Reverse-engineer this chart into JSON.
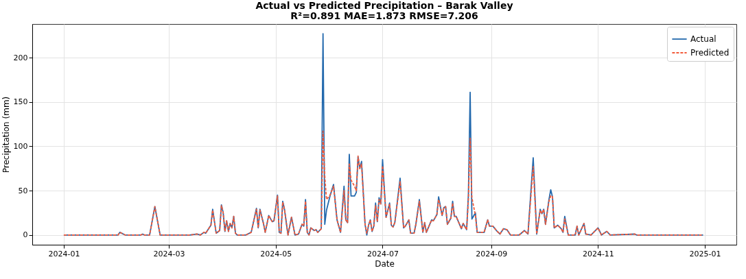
{
  "chart_data": {
    "type": "line",
    "title": "Actual vs Predicted Precipitation – Barak Valley",
    "subtitle": "R²=0.891  MAE=1.873  RMSE=7.206",
    "xlabel": "Date",
    "ylabel": "Precipitation (mm)",
    "x": [
      "2024-01-01",
      "2024-02-01",
      "2024-02-02",
      "2024-02-05",
      "2024-02-14",
      "2024-02-15",
      "2024-02-16",
      "2024-02-19",
      "2024-02-22",
      "2024-02-25",
      "2024-03-13",
      "2024-03-17",
      "2024-03-19",
      "2024-03-21",
      "2024-03-22",
      "2024-03-25",
      "2024-03-26",
      "2024-03-28",
      "2024-03-30",
      "2024-03-31",
      "2024-04-01",
      "2024-04-02",
      "2024-04-03",
      "2024-04-04",
      "2024-04-05",
      "2024-04-06",
      "2024-04-07",
      "2024-04-08",
      "2024-04-09",
      "2024-04-14",
      "2024-04-17",
      "2024-04-20",
      "2024-04-21",
      "2024-04-22",
      "2024-04-24",
      "2024-04-25",
      "2024-04-27",
      "2024-04-29",
      "2024-04-30",
      "2024-05-02",
      "2024-05-03",
      "2024-05-04",
      "2024-05-05",
      "2024-05-06",
      "2024-05-08",
      "2024-05-10",
      "2024-05-12",
      "2024-05-14",
      "2024-05-16",
      "2024-05-17",
      "2024-05-18",
      "2024-05-19",
      "2024-05-20",
      "2024-05-21",
      "2024-05-23",
      "2024-05-24",
      "2024-05-25",
      "2024-05-27",
      "2024-05-28",
      "2024-05-29",
      "2024-05-30",
      "2024-06-01",
      "2024-06-03",
      "2024-06-05",
      "2024-06-07",
      "2024-06-09",
      "2024-06-10",
      "2024-06-11",
      "2024-06-12",
      "2024-06-13",
      "2024-06-15",
      "2024-06-16",
      "2024-06-17",
      "2024-06-18",
      "2024-06-19",
      "2024-06-21",
      "2024-06-22",
      "2024-06-23",
      "2024-06-24",
      "2024-06-25",
      "2024-06-26",
      "2024-06-27",
      "2024-06-28",
      "2024-06-29",
      "2024-06-30",
      "2024-07-01",
      "2024-07-03",
      "2024-07-05",
      "2024-07-06",
      "2024-07-07",
      "2024-07-08",
      "2024-07-11",
      "2024-07-13",
      "2024-07-14",
      "2024-07-16",
      "2024-07-17",
      "2024-07-19",
      "2024-07-20",
      "2024-07-22",
      "2024-07-24",
      "2024-07-25",
      "2024-07-26",
      "2024-07-29",
      "2024-07-30",
      "2024-08-01",
      "2024-08-02",
      "2024-08-04",
      "2024-08-05",
      "2024-08-06",
      "2024-08-07",
      "2024-08-09",
      "2024-08-10",
      "2024-08-11",
      "2024-08-12",
      "2024-08-15",
      "2024-08-16",
      "2024-08-18",
      "2024-08-19",
      "2024-08-20",
      "2024-08-21",
      "2024-08-23",
      "2024-08-24",
      "2024-08-28",
      "2024-08-30",
      "2024-08-31",
      "2024-09-02",
      "2024-09-04",
      "2024-09-06",
      "2024-09-08",
      "2024-09-10",
      "2024-09-12",
      "2024-09-17",
      "2024-09-20",
      "2024-09-22",
      "2024-09-25",
      "2024-09-27",
      "2024-09-29",
      "2024-09-30",
      "2024-10-01",
      "2024-10-02",
      "2024-10-04",
      "2024-10-05",
      "2024-10-06",
      "2024-10-07",
      "2024-10-09",
      "2024-10-11",
      "2024-10-12",
      "2024-10-13",
      "2024-10-15",
      "2024-10-19",
      "2024-10-20",
      "2024-10-21",
      "2024-10-24",
      "2024-10-25",
      "2024-10-28",
      "2024-11-01",
      "2024-11-03",
      "2024-11-06",
      "2024-11-08",
      "2024-11-22",
      "2024-11-23",
      "2024-12-31"
    ],
    "series": [
      {
        "name": "Actual",
        "color": "#2369ad",
        "line_style": "solid",
        "values": [
          0,
          0,
          3,
          0,
          0,
          1,
          0,
          0,
          32,
          0,
          0,
          1,
          0,
          3,
          2,
          11,
          29,
          2,
          5,
          34,
          25,
          4,
          16,
          4,
          13,
          8,
          21,
          2,
          0,
          0,
          3,
          30,
          8,
          29,
          13,
          3,
          22,
          15,
          16,
          45,
          3,
          2,
          38,
          29,
          0,
          20,
          0,
          1,
          12,
          10,
          40,
          3,
          0,
          8,
          5,
          6,
          3,
          7,
          227,
          12,
          28,
          44,
          57,
          17,
          3,
          55,
          17,
          14,
          91,
          44,
          44,
          48,
          88,
          75,
          83,
          12,
          0,
          11,
          17,
          4,
          10,
          36,
          15,
          42,
          35,
          85,
          20,
          36,
          11,
          9,
          14,
          64,
          8,
          10,
          17,
          2,
          2,
          12,
          40,
          3,
          14,
          3,
          17,
          16,
          23,
          43,
          22,
          31,
          32,
          12,
          19,
          38,
          21,
          21,
          7,
          13,
          6,
          45,
          161,
          18,
          25,
          3,
          3,
          17,
          10,
          10,
          5,
          1,
          7,
          6,
          0,
          0,
          5,
          1,
          87,
          1,
          29,
          24,
          29,
          12,
          40,
          51,
          43,
          8,
          11,
          7,
          3,
          21,
          0,
          0,
          10,
          0,
          13,
          1,
          0,
          8,
          0,
          4,
          0,
          1,
          0,
          0
        ]
      },
      {
        "name": "Predicted",
        "color": "#f25a3a",
        "line_style": "dashed",
        "values": [
          0,
          0,
          3,
          0,
          0,
          1,
          0,
          0,
          32,
          0,
          0,
          1,
          0,
          3,
          2,
          11,
          28,
          2,
          5,
          33,
          25,
          4,
          16,
          4,
          13,
          8,
          21,
          2,
          0,
          0,
          3,
          29,
          8,
          28,
          13,
          3,
          22,
          15,
          16,
          44,
          3,
          2,
          37,
          29,
          0,
          20,
          0,
          1,
          12,
          10,
          38,
          3,
          0,
          8,
          5,
          6,
          3,
          7,
          117,
          66,
          40,
          45,
          55,
          17,
          3,
          50,
          17,
          14,
          80,
          62,
          55,
          50,
          89,
          75,
          80,
          12,
          2,
          11,
          17,
          4,
          10,
          33,
          15,
          40,
          35,
          78,
          20,
          35,
          11,
          9,
          14,
          60,
          8,
          10,
          17,
          2,
          2,
          12,
          38,
          3,
          14,
          3,
          17,
          16,
          23,
          40,
          22,
          31,
          32,
          12,
          19,
          36,
          21,
          21,
          7,
          13,
          6,
          40,
          109,
          42,
          22,
          3,
          3,
          17,
          10,
          10,
          5,
          1,
          7,
          6,
          0,
          0,
          5,
          1,
          77,
          1,
          28,
          24,
          29,
          12,
          38,
          44,
          44,
          8,
          11,
          7,
          3,
          18,
          0,
          0,
          10,
          0,
          13,
          1,
          0,
          8,
          0,
          4,
          0,
          1,
          0,
          0
        ]
      }
    ],
    "xlim": [
      "2023-12-14",
      "2025-01-19"
    ],
    "xticks": [
      "2024-01",
      "2024-03",
      "2024-05",
      "2024-07",
      "2024-09",
      "2024-11",
      "2025-01"
    ],
    "ylim": [
      -11,
      238
    ],
    "yticks": [
      0,
      50,
      100,
      150,
      200
    ],
    "grid": true,
    "legend": "top right"
  }
}
